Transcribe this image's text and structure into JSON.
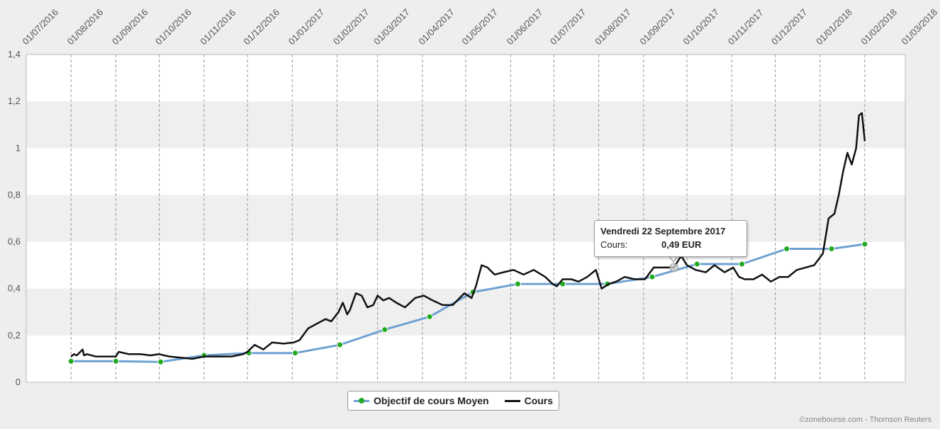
{
  "chart_data": {
    "type": "line",
    "title": "",
    "xlabel": "",
    "ylabel": "",
    "x_ticks": [
      "01/07/2016",
      "01/08/2016",
      "01/09/2016",
      "01/10/2016",
      "01/11/2016",
      "01/12/2016",
      "01/01/2017",
      "01/02/2017",
      "01/03/2017",
      "01/04/2017",
      "01/05/2017",
      "01/06/2017",
      "01/07/2017",
      "01/08/2017",
      "01/09/2017",
      "01/10/2017",
      "01/11/2017",
      "01/12/2017",
      "01/01/2018",
      "01/02/2018",
      "01/03/2018"
    ],
    "y_ticks": [
      "0",
      "0,2",
      "0,4",
      "0,6",
      "0,8",
      "1",
      "1,2",
      "1,4"
    ],
    "ylim": [
      0,
      1.4
    ],
    "xlim": [
      "2016-07-01",
      "2018-03-01"
    ],
    "grid": "vertical dashed lines at month ticks, alternating horizontal bands",
    "legend_position": "bottom-center",
    "series": [
      {
        "name": "Objectif de cours Moyen",
        "color": "#6fa1d3",
        "marker_color": "#22aa22",
        "x": [
          "2016-08-01",
          "2016-09-01",
          "2016-10-02",
          "2016-11-01",
          "2016-12-02",
          "2017-01-03",
          "2017-02-03",
          "2017-03-06",
          "2017-04-06",
          "2017-05-06",
          "2017-06-06",
          "2017-07-07",
          "2017-08-07",
          "2017-09-07",
          "2017-10-08",
          "2017-11-08",
          "2017-12-09",
          "2018-01-09",
          "2018-02-01"
        ],
        "values": [
          0.09,
          0.09,
          0.087,
          0.115,
          0.125,
          0.125,
          0.16,
          0.225,
          0.28,
          0.385,
          0.42,
          0.42,
          0.42,
          0.45,
          0.505,
          0.505,
          0.57,
          0.57,
          0.59
        ]
      },
      {
        "name": "Cours",
        "color": "#111111",
        "x": [
          "2016-08-01",
          "2016-08-03",
          "2016-08-05",
          "2016-08-09",
          "2016-08-10",
          "2016-08-12",
          "2016-08-18",
          "2016-08-25",
          "2016-09-01",
          "2016-09-03",
          "2016-09-10",
          "2016-09-18",
          "2016-09-25",
          "2016-10-01",
          "2016-10-08",
          "2016-10-16",
          "2016-10-24",
          "2016-11-01",
          "2016-11-10",
          "2016-11-20",
          "2016-11-28",
          "2016-12-01",
          "2016-12-06",
          "2016-12-12",
          "2016-12-18",
          "2016-12-26",
          "2017-01-02",
          "2017-01-06",
          "2017-01-12",
          "2017-01-18",
          "2017-01-24",
          "2017-01-28",
          "2017-02-02",
          "2017-02-05",
          "2017-02-08",
          "2017-02-10",
          "2017-02-14",
          "2017-02-18",
          "2017-02-22",
          "2017-02-26",
          "2017-03-01",
          "2017-03-05",
          "2017-03-09",
          "2017-03-14",
          "2017-03-20",
          "2017-03-27",
          "2017-04-02",
          "2017-04-08",
          "2017-04-15",
          "2017-04-22",
          "2017-04-30",
          "2017-05-05",
          "2017-05-08",
          "2017-05-12",
          "2017-05-16",
          "2017-05-21",
          "2017-05-27",
          "2017-06-03",
          "2017-06-10",
          "2017-06-17",
          "2017-06-25",
          "2017-06-30",
          "2017-07-03",
          "2017-07-07",
          "2017-07-13",
          "2017-07-18",
          "2017-07-24",
          "2017-07-30",
          "2017-08-03",
          "2017-08-08",
          "2017-08-13",
          "2017-08-19",
          "2017-08-26",
          "2017-09-02",
          "2017-09-08",
          "2017-09-14",
          "2017-09-22",
          "2017-09-27",
          "2017-10-01",
          "2017-10-07",
          "2017-10-14",
          "2017-10-20",
          "2017-10-27",
          "2017-11-02",
          "2017-11-06",
          "2017-11-10",
          "2017-11-16",
          "2017-11-22",
          "2017-11-28",
          "2017-12-04",
          "2017-12-10",
          "2017-12-16",
          "2017-12-22",
          "2017-12-28",
          "2018-01-03",
          "2018-01-07",
          "2018-01-11",
          "2018-01-14",
          "2018-01-17",
          "2018-01-20",
          "2018-01-23",
          "2018-01-26",
          "2018-01-28",
          "2018-01-30",
          "2018-02-01"
        ],
        "values": [
          0.11,
          0.12,
          0.115,
          0.14,
          0.115,
          0.12,
          0.11,
          0.11,
          0.11,
          0.13,
          0.12,
          0.12,
          0.115,
          0.12,
          0.11,
          0.105,
          0.1,
          0.11,
          0.11,
          0.11,
          0.12,
          0.13,
          0.16,
          0.14,
          0.17,
          0.165,
          0.17,
          0.18,
          0.23,
          0.25,
          0.27,
          0.26,
          0.3,
          0.34,
          0.29,
          0.31,
          0.38,
          0.37,
          0.32,
          0.33,
          0.37,
          0.35,
          0.36,
          0.34,
          0.32,
          0.36,
          0.37,
          0.35,
          0.33,
          0.33,
          0.38,
          0.36,
          0.41,
          0.5,
          0.49,
          0.46,
          0.47,
          0.48,
          0.46,
          0.48,
          0.45,
          0.42,
          0.41,
          0.44,
          0.44,
          0.43,
          0.45,
          0.48,
          0.4,
          0.42,
          0.43,
          0.45,
          0.44,
          0.44,
          0.49,
          0.49,
          0.49,
          0.54,
          0.5,
          0.48,
          0.47,
          0.5,
          0.47,
          0.49,
          0.45,
          0.44,
          0.44,
          0.46,
          0.43,
          0.45,
          0.45,
          0.48,
          0.49,
          0.5,
          0.55,
          0.7,
          0.72,
          0.8,
          0.9,
          0.98,
          0.93,
          1.0,
          1.14,
          1.15,
          1.03
        ]
      }
    ]
  },
  "tooltip": {
    "title": "Vendredi 22 Septembre 2017",
    "label": "Cours:",
    "value": "0,49 EUR"
  },
  "legend": {
    "items": [
      "Objectif de cours Moyen",
      "Cours"
    ]
  },
  "credit": "©zonebourse.com - Thomson Reuters"
}
